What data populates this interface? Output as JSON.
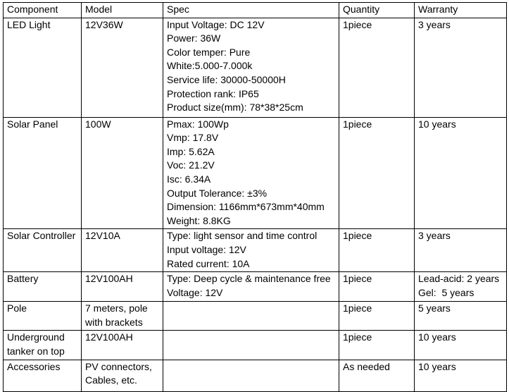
{
  "table": {
    "headers": [
      "Component",
      "Model",
      "Spec",
      "Quantity",
      "Warranty"
    ],
    "rows": [
      {
        "component": "LED Light",
        "model": "12V36W",
        "spec": [
          "Input Voltage: DC 12V",
          "Power: 36W",
          "Color temper: Pure",
          "White:5.000-7.000k",
          "Service life: 30000-50000H",
          "Protection rank: IP65",
          "Product size(mm): 78*38*25cm"
        ],
        "quantity": "1piece",
        "warranty": [
          "3 years"
        ]
      },
      {
        "component": "Solar Panel",
        "model": "100W",
        "spec": [
          "Pmax: 100Wp",
          "Vmp: 17.8V",
          "Imp: 5.62A",
          "Voc: 21.2V",
          "Isc: 6.34A",
          "Output Tolerance: ±3%",
          "Dimension: 1166mm*673mm*40mm",
          "Weight: 8.8KG"
        ],
        "quantity": "1piece",
        "warranty": [
          "10 years"
        ]
      },
      {
        "component": "Solar Controller",
        "model": "12V10A",
        "spec": [
          "Type: light sensor and time control",
          "Input voltage: 12V",
          "Rated current: 10A"
        ],
        "quantity": "1piece",
        "warranty": [
          "3 years"
        ]
      },
      {
        "component": "Battery",
        "model": "12V100AH",
        "spec": [
          "Type: Deep cycle & maintenance free",
          "Voltage: 12V"
        ],
        "quantity": "1piece",
        "warranty": [
          "Lead-acid: 2 years",
          "Gel:  5 years"
        ]
      },
      {
        "component": "Pole",
        "model": "7 meters, pole with brackets",
        "spec": [],
        "quantity": "1piece",
        "warranty": [
          "5 years"
        ]
      },
      {
        "component": "Underground tanker on top",
        "model": "12V100AH",
        "spec": [],
        "quantity": "1piece",
        "warranty": [
          "10 years"
        ]
      },
      {
        "component": "Accessories",
        "model": "PV connectors, Cables, etc.",
        "spec": [],
        "quantity": "As needed",
        "warranty": [
          "10 years"
        ]
      }
    ]
  }
}
